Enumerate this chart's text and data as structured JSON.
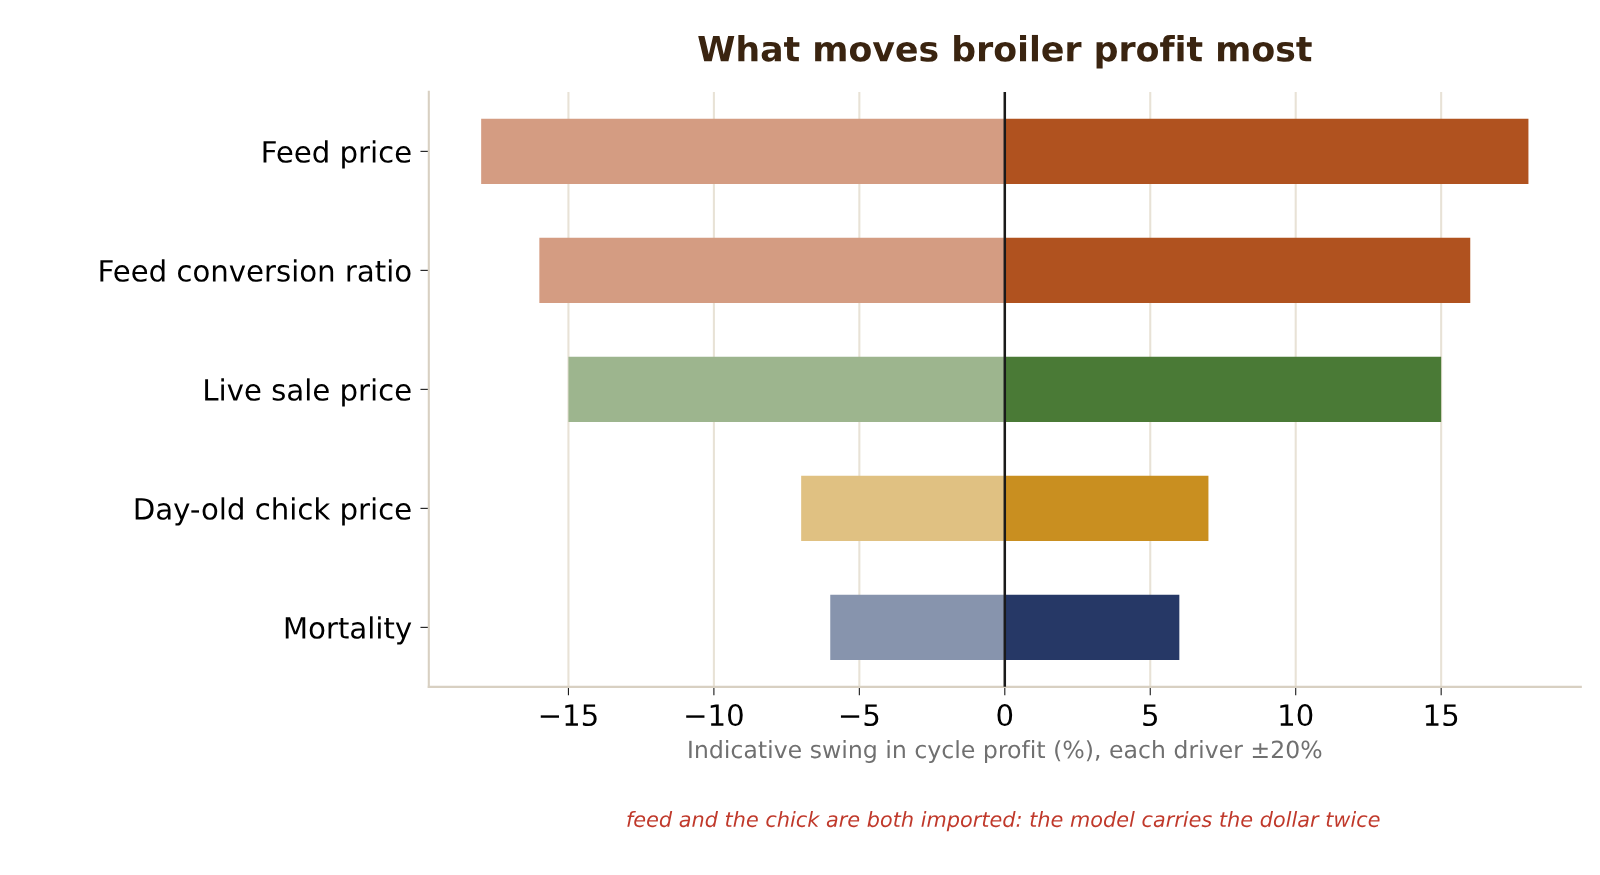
{
  "chart_data": {
    "type": "bar",
    "orientation": "horizontal",
    "stacked": true,
    "title": "What moves broiler profit most",
    "xlabel": "Indicative swing in cycle profit (%), each driver ±20%",
    "annotations": [
      "feed and the chick are both imported: the model carries the dollar twice"
    ],
    "categories": [
      "Feed price",
      "Feed conversion ratio",
      "Live sale price",
      "Day-old chick price",
      "Mortality"
    ],
    "series": [
      {
        "values": [
          -18,
          -16,
          -15,
          -7,
          -6
        ],
        "colors": [
          "#d49c82",
          "#d49c82",
          "#9db58e",
          "#e0c182",
          "#8794ad"
        ]
      },
      {
        "values": [
          18,
          16,
          15,
          7,
          6
        ],
        "colors": [
          "#b0521f",
          "#b0521f",
          "#4a7a36",
          "#c98f20",
          "#263866"
        ]
      }
    ],
    "xlim": [
      -19.8,
      19.8
    ],
    "xticks": [
      {
        "value": -15,
        "label": "−15"
      },
      {
        "value": -10,
        "label": "−10"
      },
      {
        "value": -5,
        "label": "−5"
      },
      0,
      5,
      10,
      15
    ],
    "ref_lines": [
      {
        "axis": "x",
        "value": 0,
        "color": "#1a1a1a"
      }
    ],
    "grid": "x",
    "legend": false
  }
}
